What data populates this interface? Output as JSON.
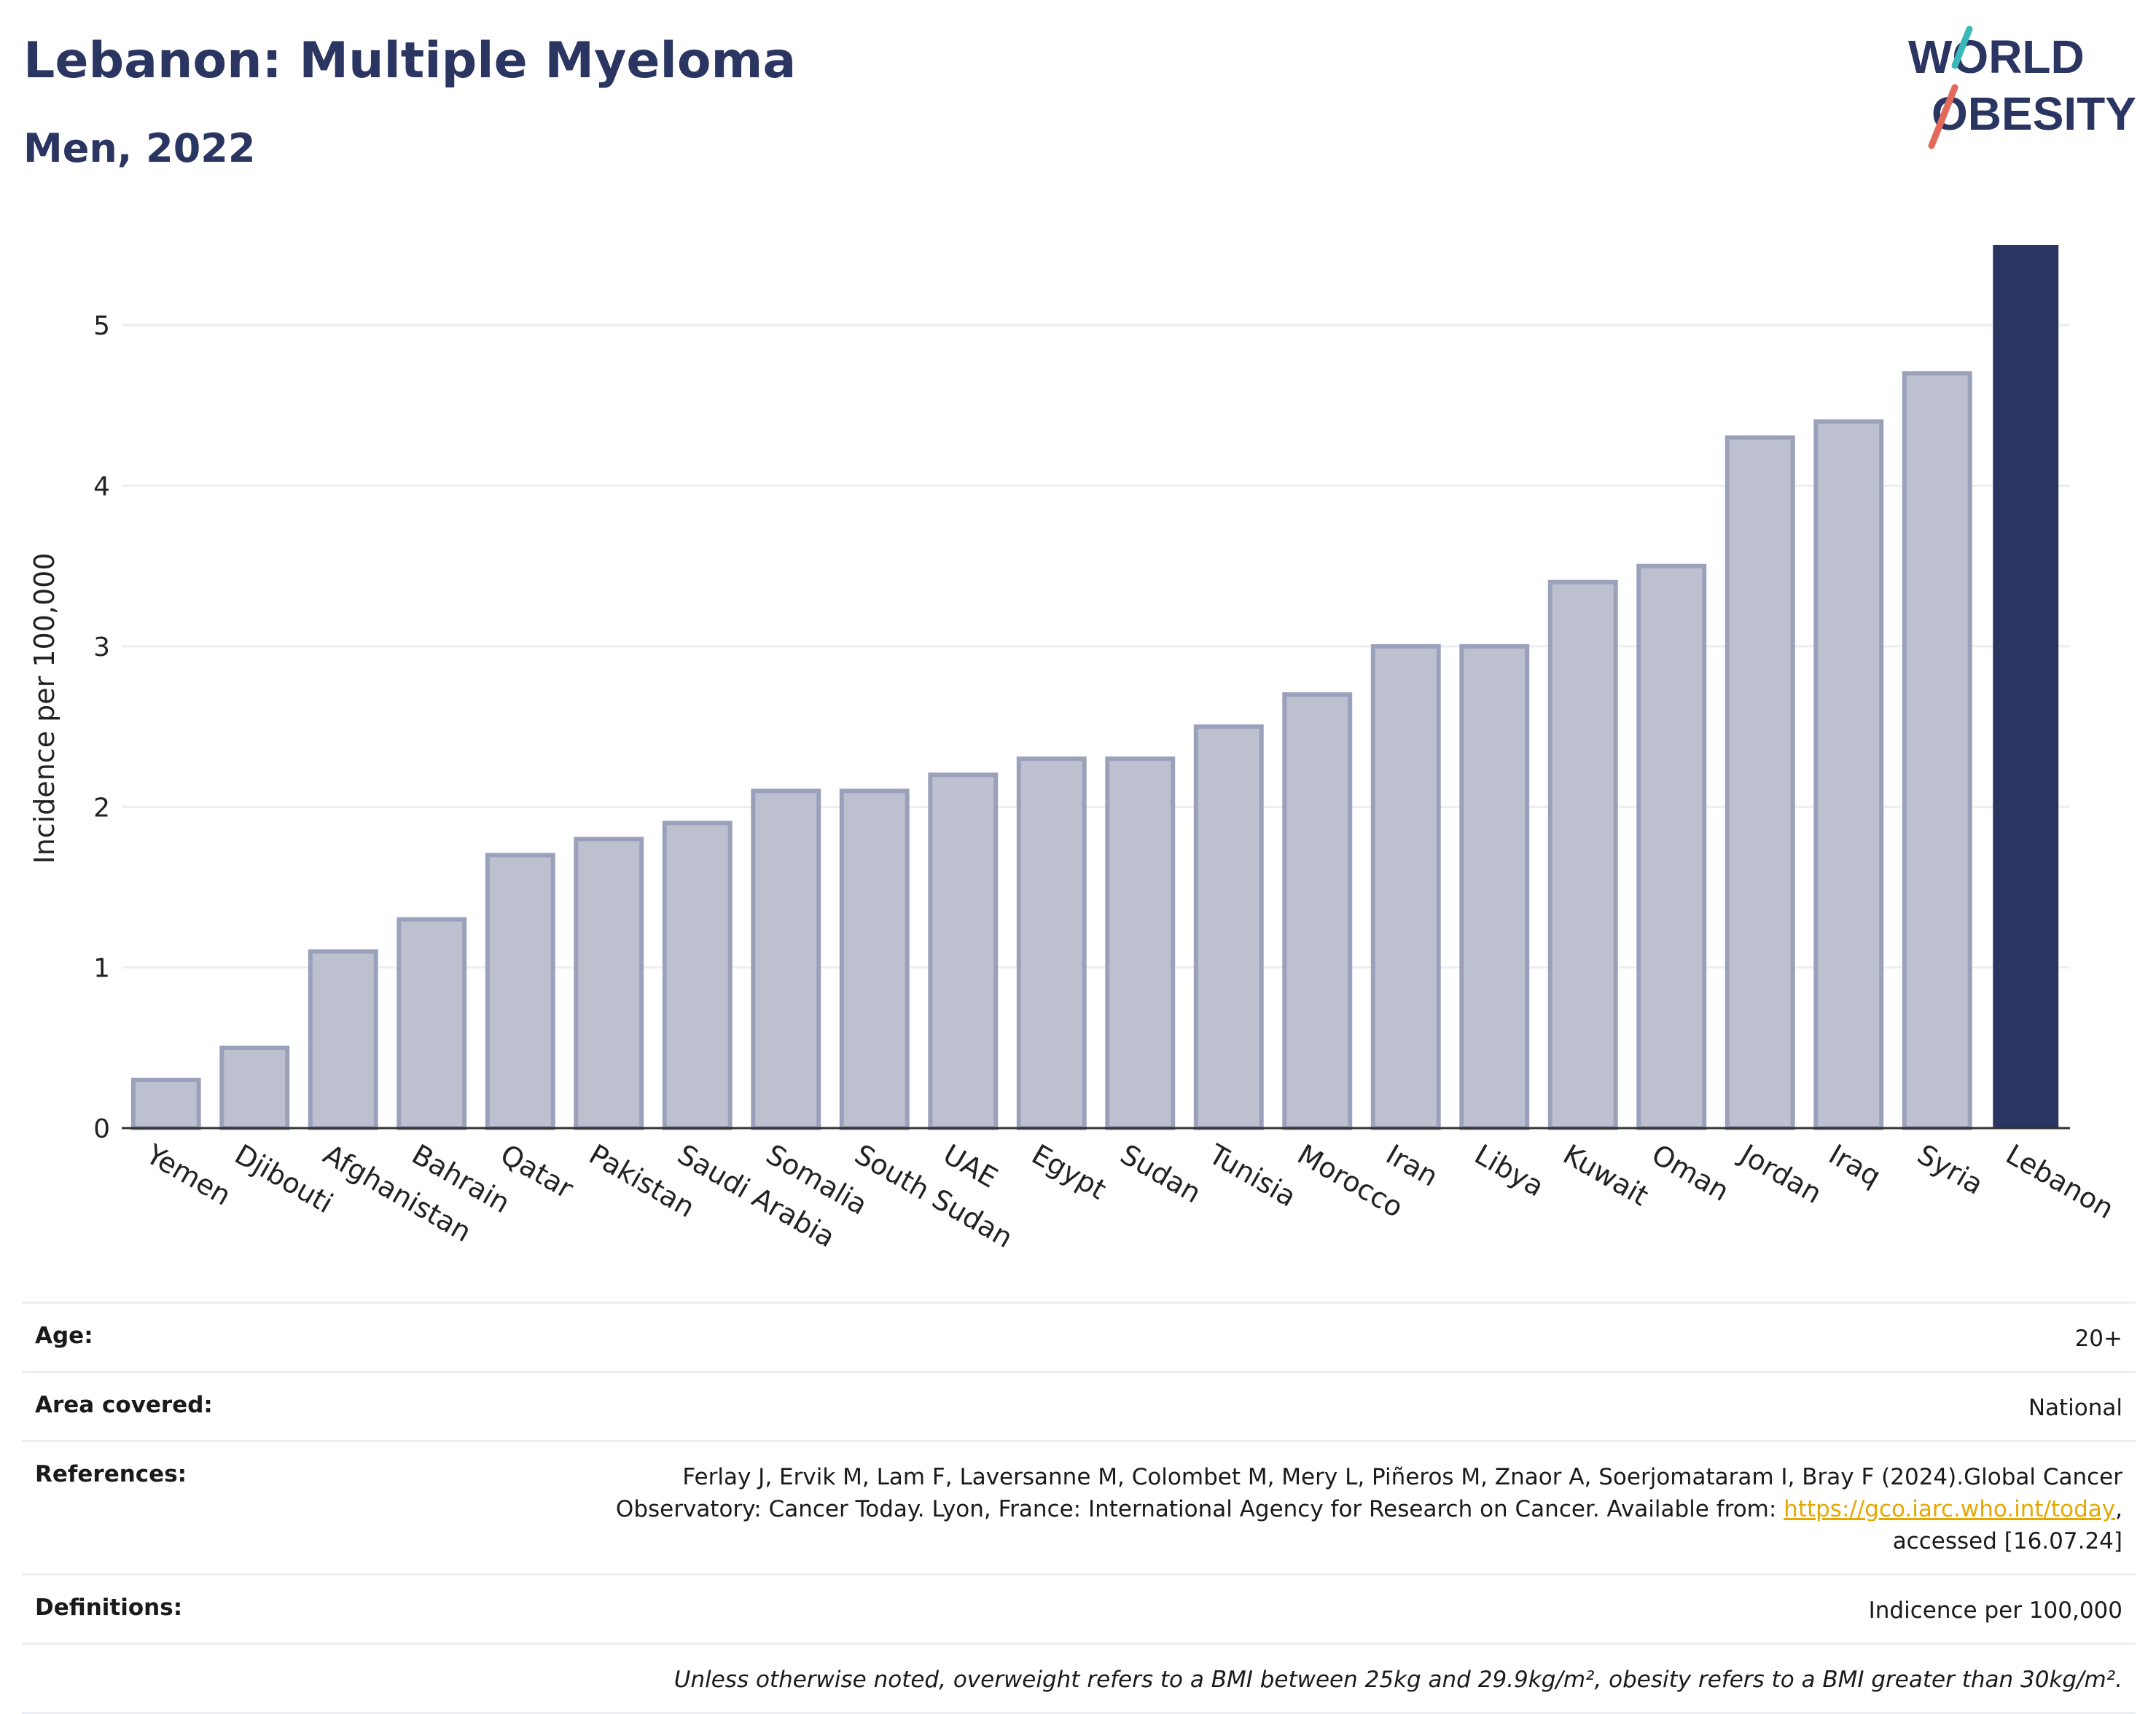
{
  "header": {
    "title": "Lebanon: Multiple Myeloma",
    "subtitle": "Men, 2022"
  },
  "logo": {
    "line1": "WORLD",
    "line2": "OBESITY",
    "colors": {
      "text": "#2a3561",
      "slash_top": "#3bb8b8",
      "slash_bottom": "#e2685a"
    }
  },
  "colors": {
    "highlight_bar": "#2a3561",
    "other_bar_fill": "#bcc0cf",
    "other_bar_stroke": "#9ba1bb",
    "grid": "#eceef4",
    "axis": "#333333"
  },
  "chart_data": {
    "type": "bar",
    "ylabel": "Incidence per 100,000",
    "xlabel": "",
    "ylim": [
      0,
      5.5
    ],
    "yticks": [
      0,
      1,
      2,
      3,
      4,
      5
    ],
    "grid": true,
    "highlight": "Lebanon",
    "categories": [
      "Yemen",
      "Djibouti",
      "Afghanistan",
      "Bahrain",
      "Qatar",
      "Pakistan",
      "Saudi Arabia",
      "Somalia",
      "South Sudan",
      "UAE",
      "Egypt",
      "Sudan",
      "Tunisia",
      "Morocco",
      "Iran",
      "Libya",
      "Kuwait",
      "Oman",
      "Jordan",
      "Iraq",
      "Syria",
      "Lebanon"
    ],
    "values": [
      0.3,
      0.5,
      1.1,
      1.3,
      1.7,
      1.8,
      1.9,
      2.1,
      2.1,
      2.2,
      2.3,
      2.3,
      2.5,
      2.7,
      3.0,
      3.0,
      3.4,
      3.5,
      4.3,
      4.4,
      4.7,
      5.5
    ]
  },
  "meta": {
    "age_label": "Age:",
    "age_value": "20+",
    "area_label": "Area covered:",
    "area_value": "National",
    "references_label": "References:",
    "references_text": "Ferlay J, Ervik M, Lam F, Laversanne M, Colombet M, Mery L, Piñeros M, Znaor A, Soerjomataram I, Bray F (2024).Global Cancer Observatory: Cancer Today. Lyon, France: International Agency for Research on Cancer. Available from: ",
    "references_link": "https://gco.iarc.who.int/today",
    "references_suffix": ", accessed [16.07.24]",
    "definitions_label": "Definitions:",
    "definitions_value": "Indicence per 100,000",
    "note": "Unless otherwise noted, overweight refers to a BMI between 25kg and 29.9kg/m², obesity refers to a BMI greater than 30kg/m²."
  }
}
